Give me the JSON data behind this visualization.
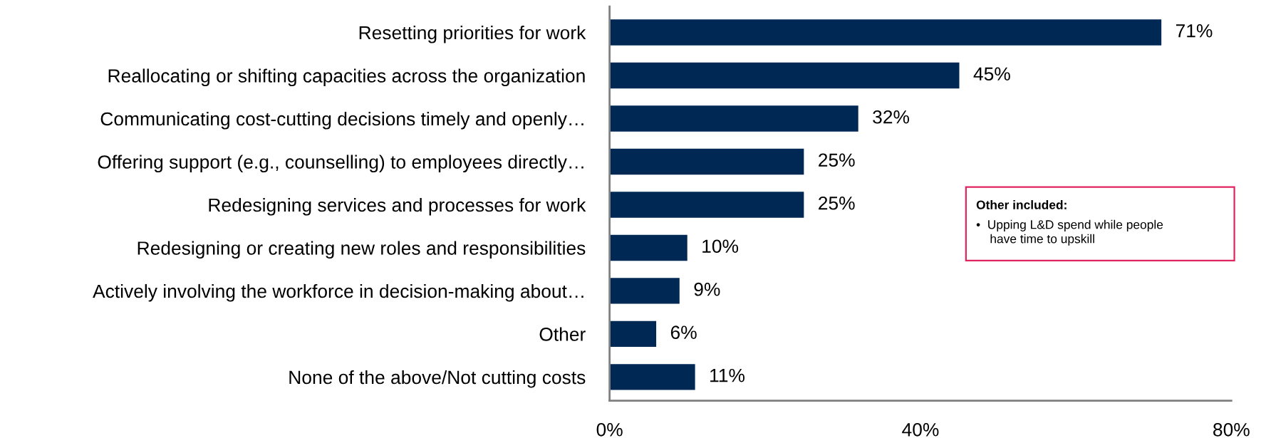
{
  "chart_data": {
    "type": "bar",
    "orientation": "horizontal",
    "categories": [
      "Resetting priorities for work",
      "Reallocating or shifting capacities across the organization",
      "Communicating cost-cutting decisions timely and openly…",
      "Offering support (e.g., counselling) to employees directly…",
      "Redesigning services and processes for work",
      "Redesigning or creating new roles and responsibilities",
      "Actively involving the workforce in decision-making about…",
      "Other",
      "None of the above/Not cutting costs"
    ],
    "values": [
      71,
      45,
      32,
      25,
      25,
      10,
      9,
      6,
      11
    ],
    "value_labels": [
      "71%",
      "45%",
      "32%",
      "25%",
      "25%",
      "10%",
      "9%",
      "6%",
      "11%"
    ],
    "color": "#002855",
    "xlim": [
      0,
      80
    ],
    "xticks": [
      {
        "value": 0,
        "label": "0%"
      },
      {
        "value": 40,
        "label": "40%"
      },
      {
        "value": 80,
        "label": "80%"
      }
    ],
    "grid": false,
    "legend": false,
    "annotations": [
      "Other included:",
      "•  Upping L&D spend while people\n    have time to upskill"
    ]
  }
}
